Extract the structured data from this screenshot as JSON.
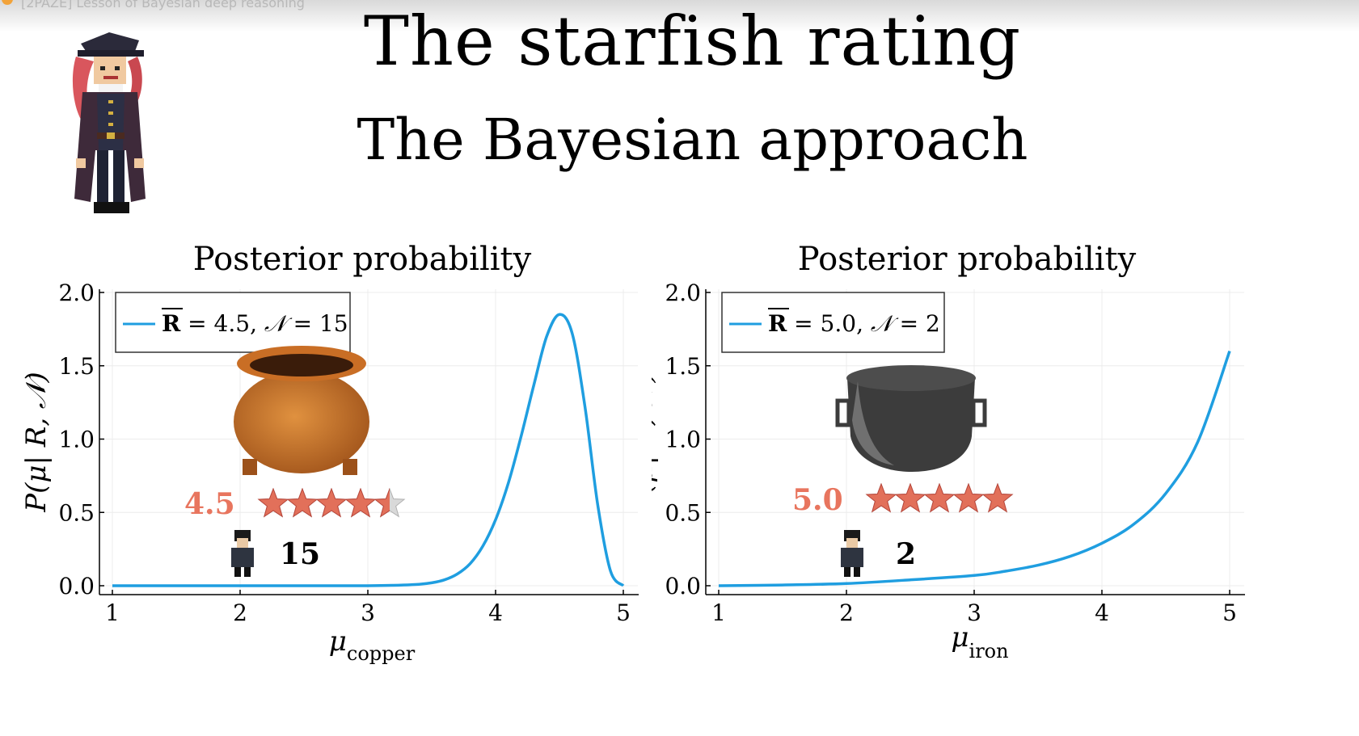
{
  "window": {
    "tab_title": "[2PAZE] Lesson of Bayesian deep reasoning"
  },
  "slide": {
    "title": "The starfish rating",
    "subtitle": "The Bayesian approach"
  },
  "colors": {
    "curve": "#1f9ee0",
    "rating_text": "#e8755e",
    "star_fill": "#e2705a",
    "copper_pot": "#c4702a",
    "iron_pot": "#3a3a3a"
  },
  "icons": [
    "pirate-captain-icon",
    "copper-pot-icon",
    "iron-pot-icon",
    "star-icon",
    "pirate-crew-icon"
  ],
  "chart_data": [
    {
      "type": "line",
      "title": "Posterior probability",
      "xlabel": "μ",
      "xlabel_sub": "copper",
      "ylabel": "P(μ| R, 𝒩)",
      "xlim": [
        1,
        5
      ],
      "ylim": [
        0,
        2
      ],
      "xticks": [
        "1",
        "2",
        "3",
        "4",
        "5"
      ],
      "yticks": [
        "0.0",
        "0.5",
        "1.0",
        "1.5",
        "2.0"
      ],
      "grid": true,
      "legend_position": "top-left",
      "legend": {
        "r_label": "R",
        "r_value": "4.5",
        "n_label": "𝒩",
        "n_value": "15"
      },
      "series": [
        {
          "name": "R = 4.5, 𝒩 = 15",
          "x": [
            1.0,
            2.0,
            2.5,
            3.0,
            3.2,
            3.4,
            3.5,
            3.6,
            3.7,
            3.8,
            3.9,
            4.0,
            4.1,
            4.2,
            4.3,
            4.4,
            4.5,
            4.6,
            4.7,
            4.8,
            4.9,
            5.0
          ],
          "y": [
            0.0,
            0.0,
            0.0,
            0.0,
            0.003,
            0.01,
            0.02,
            0.04,
            0.08,
            0.15,
            0.27,
            0.45,
            0.7,
            1.02,
            1.37,
            1.7,
            1.85,
            1.72,
            1.22,
            0.55,
            0.1,
            0.0
          ]
        }
      ],
      "overlay": {
        "item": "copper",
        "rating": "4.5",
        "stars": 4.5,
        "stars_max": 5,
        "reviewer_count": "15"
      }
    },
    {
      "type": "line",
      "title": "Posterior probability",
      "xlabel": "μ",
      "xlabel_sub": "iron",
      "ylabel": "P(μ| R, 𝒩)",
      "xlim": [
        1,
        5
      ],
      "ylim": [
        0,
        2
      ],
      "xticks": [
        "1",
        "2",
        "3",
        "4",
        "5"
      ],
      "yticks": [
        "0.0",
        "0.5",
        "1.0",
        "1.5",
        "2.0"
      ],
      "grid": true,
      "legend_position": "top-left",
      "legend": {
        "r_label": "R",
        "r_value": "5.0",
        "n_label": "𝒩",
        "n_value": "2"
      },
      "series": [
        {
          "name": "R = 5.0, 𝒩 = 2",
          "x": [
            1.0,
            1.5,
            2.0,
            2.5,
            3.0,
            3.25,
            3.5,
            3.75,
            4.0,
            4.25,
            4.5,
            4.75,
            5.0
          ],
          "y": [
            0.0,
            0.005,
            0.015,
            0.04,
            0.07,
            0.1,
            0.14,
            0.2,
            0.29,
            0.42,
            0.63,
            0.98,
            1.6
          ]
        }
      ],
      "overlay": {
        "item": "iron",
        "rating": "5.0",
        "stars": 5,
        "stars_max": 5,
        "reviewer_count": "2"
      }
    }
  ]
}
